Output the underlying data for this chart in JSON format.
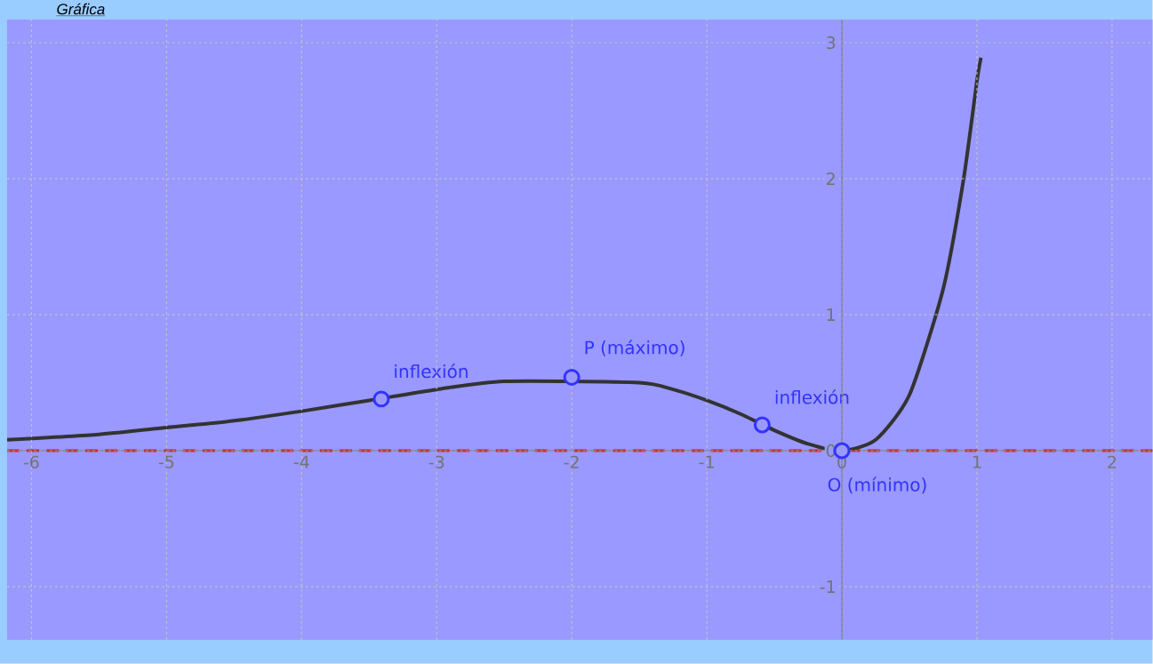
{
  "chart_data": {
    "type": "line",
    "title": "Gráfica",
    "x": [
      -6.18,
      -5.5,
      -5,
      -4.5,
      -4,
      -3.5,
      -3,
      -2.5,
      -2,
      -1.5,
      -1.25,
      -1,
      -0.75,
      -0.5,
      -0.25,
      0,
      0.25,
      0.5,
      0.75,
      0.9,
      1,
      1.03
    ],
    "series": [
      {
        "color": "#333333",
        "values": [
          0.08,
          0.12,
          0.17,
          0.22,
          0.29,
          0.37,
          0.45,
          0.51,
          null,
          0.5,
          0.45,
          0.37,
          0.27,
          0.15,
          0.05,
          0,
          0.08,
          0.41,
          1.19,
          1.99,
          2.72,
          2.89
        ]
      },
      {
        "type": "scatter",
        "marker": "circle",
        "color": "#3333ff",
        "x": [
          -3.41,
          -2,
          -0.59,
          0
        ],
        "values": [
          0.38,
          0.54,
          0.19,
          0
        ]
      }
    ],
    "annotations": [
      {
        "text": "inflexión",
        "x": -3.41,
        "y": 0.38
      },
      {
        "text": "P (máximo)",
        "x": -2,
        "y": 0.54
      },
      {
        "text": "inflexión",
        "x": -0.59,
        "y": 0.19
      },
      {
        "text": "O (mínimo)",
        "x": 0,
        "y": 0
      }
    ],
    "ref_lines": [
      {
        "axis": "y",
        "value": 0,
        "color": "#ff0000",
        "line_style": "dashed"
      }
    ],
    "xlim": [
      -6.18,
      2.3
    ],
    "ylim": [
      -1.39,
      3.17
    ],
    "xticks": [
      -6,
      -5,
      -4,
      -3,
      -2,
      -1,
      0,
      1,
      2
    ],
    "yticks": [
      -1,
      0,
      1,
      2,
      3
    ],
    "grid": true,
    "line_style": "solid"
  }
}
